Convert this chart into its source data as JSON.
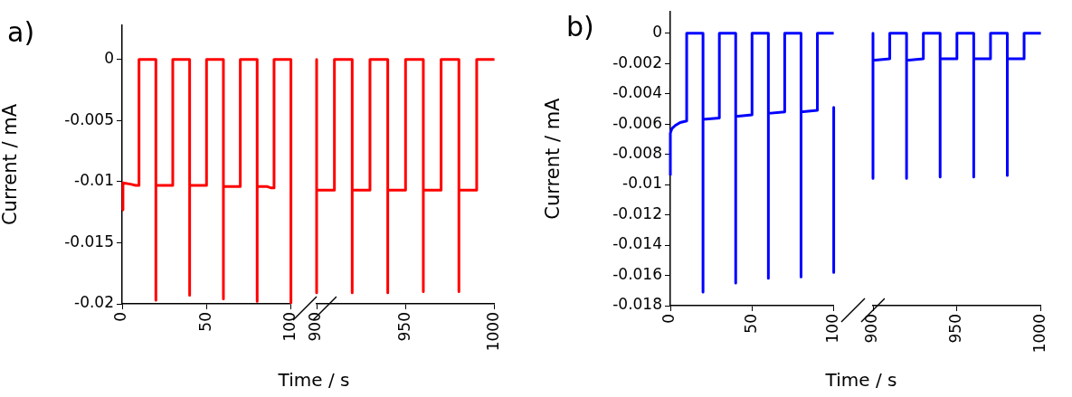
{
  "chart_data": [
    {
      "type": "line",
      "title": "a)",
      "xlabel": "Time / s",
      "ylabel": "Current / mA",
      "xlim": [
        0,
        100
      ],
      "xticks": [
        0,
        50,
        100
      ],
      "ylim": [
        -0.02,
        0.0028
      ],
      "yticks": [
        0,
        -0.005,
        -0.01,
        -0.015,
        -0.02
      ],
      "marker": "none",
      "legend": false,
      "series": [
        {
          "color": "#ff0000",
          "x": [
            0,
            0.5,
            5,
            8,
            10,
            10,
            20,
            20,
            20,
            30,
            30,
            40,
            40,
            40,
            50,
            50,
            60,
            60,
            60,
            70,
            70,
            80,
            80,
            80,
            86,
            88,
            90,
            90,
            100,
            100
          ],
          "values": [
            -0.0123,
            -0.0101,
            -0.0102,
            -0.0103,
            -0.0103,
            0,
            0,
            -0.0197,
            -0.0103,
            -0.0103,
            0,
            0,
            -0.0193,
            -0.0103,
            -0.0103,
            0,
            0,
            -0.0196,
            -0.0104,
            -0.0104,
            0,
            0,
            -0.0198,
            -0.0104,
            -0.0104,
            -0.0105,
            -0.0105,
            0,
            0,
            -0.0199
          ]
        }
      ]
    },
    {
      "type": "line",
      "xlim": [
        900,
        1000
      ],
      "xticks": [
        900,
        950,
        1000
      ],
      "ylim": [
        -0.02,
        0
      ],
      "yticks": [
        0,
        -0.005,
        -0.01,
        -0.015,
        -0.02
      ],
      "tick_labels": "x",
      "marker": "none",
      "legend": false,
      "series": [
        {
          "color": "#ff0000",
          "x": [
            900,
            900,
            900,
            910,
            910,
            920,
            920,
            920,
            930,
            930,
            940,
            940,
            940,
            950,
            950,
            960,
            960,
            960,
            970,
            970,
            980,
            980,
            980,
            990,
            990,
            1000
          ],
          "values": [
            0,
            -0.0191,
            -0.0107,
            -0.0107,
            0,
            0,
            -0.0191,
            -0.0107,
            -0.0107,
            0,
            0,
            -0.0191,
            -0.0107,
            -0.0107,
            0,
            0,
            -0.019,
            -0.0107,
            -0.0107,
            0,
            0,
            -0.019,
            -0.0107,
            -0.0107,
            0,
            0
          ]
        }
      ]
    },
    {
      "type": "line",
      "title": "b)",
      "xlabel": "Time / s",
      "ylabel": "Current / mA",
      "xlim": [
        0,
        100
      ],
      "xticks": [
        0,
        50,
        100
      ],
      "ylim": [
        -0.018,
        0.0014
      ],
      "yticks": [
        0,
        -0.002,
        -0.004,
        -0.006,
        -0.008,
        -0.01,
        -0.012,
        -0.014,
        -0.016,
        -0.018
      ],
      "marker": "none",
      "legend": false,
      "series": [
        {
          "color": "#0000ff",
          "x": [
            0,
            0,
            1,
            3,
            6,
            10,
            10,
            20,
            20,
            20,
            30,
            30,
            40,
            40,
            40,
            50,
            50,
            60,
            60,
            60,
            70,
            70,
            80,
            80,
            80,
            90,
            90,
            100
          ],
          "values": [
            -0.0094,
            -0.0066,
            -0.0063,
            -0.0061,
            -0.0059,
            -0.0058,
            0,
            0,
            -0.0171,
            -0.0057,
            -0.0056,
            0,
            0,
            -0.0165,
            -0.0055,
            -0.0054,
            0,
            0,
            -0.0162,
            -0.0053,
            -0.0052,
            0,
            0,
            -0.0161,
            -0.0052,
            -0.0051,
            0,
            0
          ]
        },
        {
          "color": "#0000ff",
          "x": [
            100,
            100
          ],
          "values": [
            -0.0049,
            -0.0158
          ]
        }
      ]
    },
    {
      "type": "line",
      "xlim": [
        900,
        1000
      ],
      "xticks": [
        900,
        950,
        1000
      ],
      "ylim": [
        -0.018,
        0
      ],
      "yticks": [
        0,
        -0.002,
        -0.004,
        -0.006,
        -0.008,
        -0.01,
        -0.012,
        -0.014,
        -0.016,
        -0.018
      ],
      "tick_labels": "x",
      "marker": "none",
      "legend": false,
      "series": [
        {
          "color": "#0000ff",
          "x": [
            900,
            900,
            900,
            910,
            910,
            920,
            920,
            920,
            930,
            930,
            940,
            940,
            940,
            950,
            950,
            960,
            960,
            960,
            970,
            970,
            980,
            980,
            980,
            990,
            990,
            1000
          ],
          "values": [
            0,
            -0.0096,
            -0.0018,
            -0.0017,
            0,
            0,
            -0.0096,
            -0.0018,
            -0.0017,
            0,
            0,
            -0.0095,
            -0.0017,
            -0.0017,
            0,
            0,
            -0.0095,
            -0.0017,
            -0.0017,
            0,
            0,
            -0.0094,
            -0.0017,
            -0.0017,
            0,
            0
          ]
        }
      ]
    }
  ]
}
